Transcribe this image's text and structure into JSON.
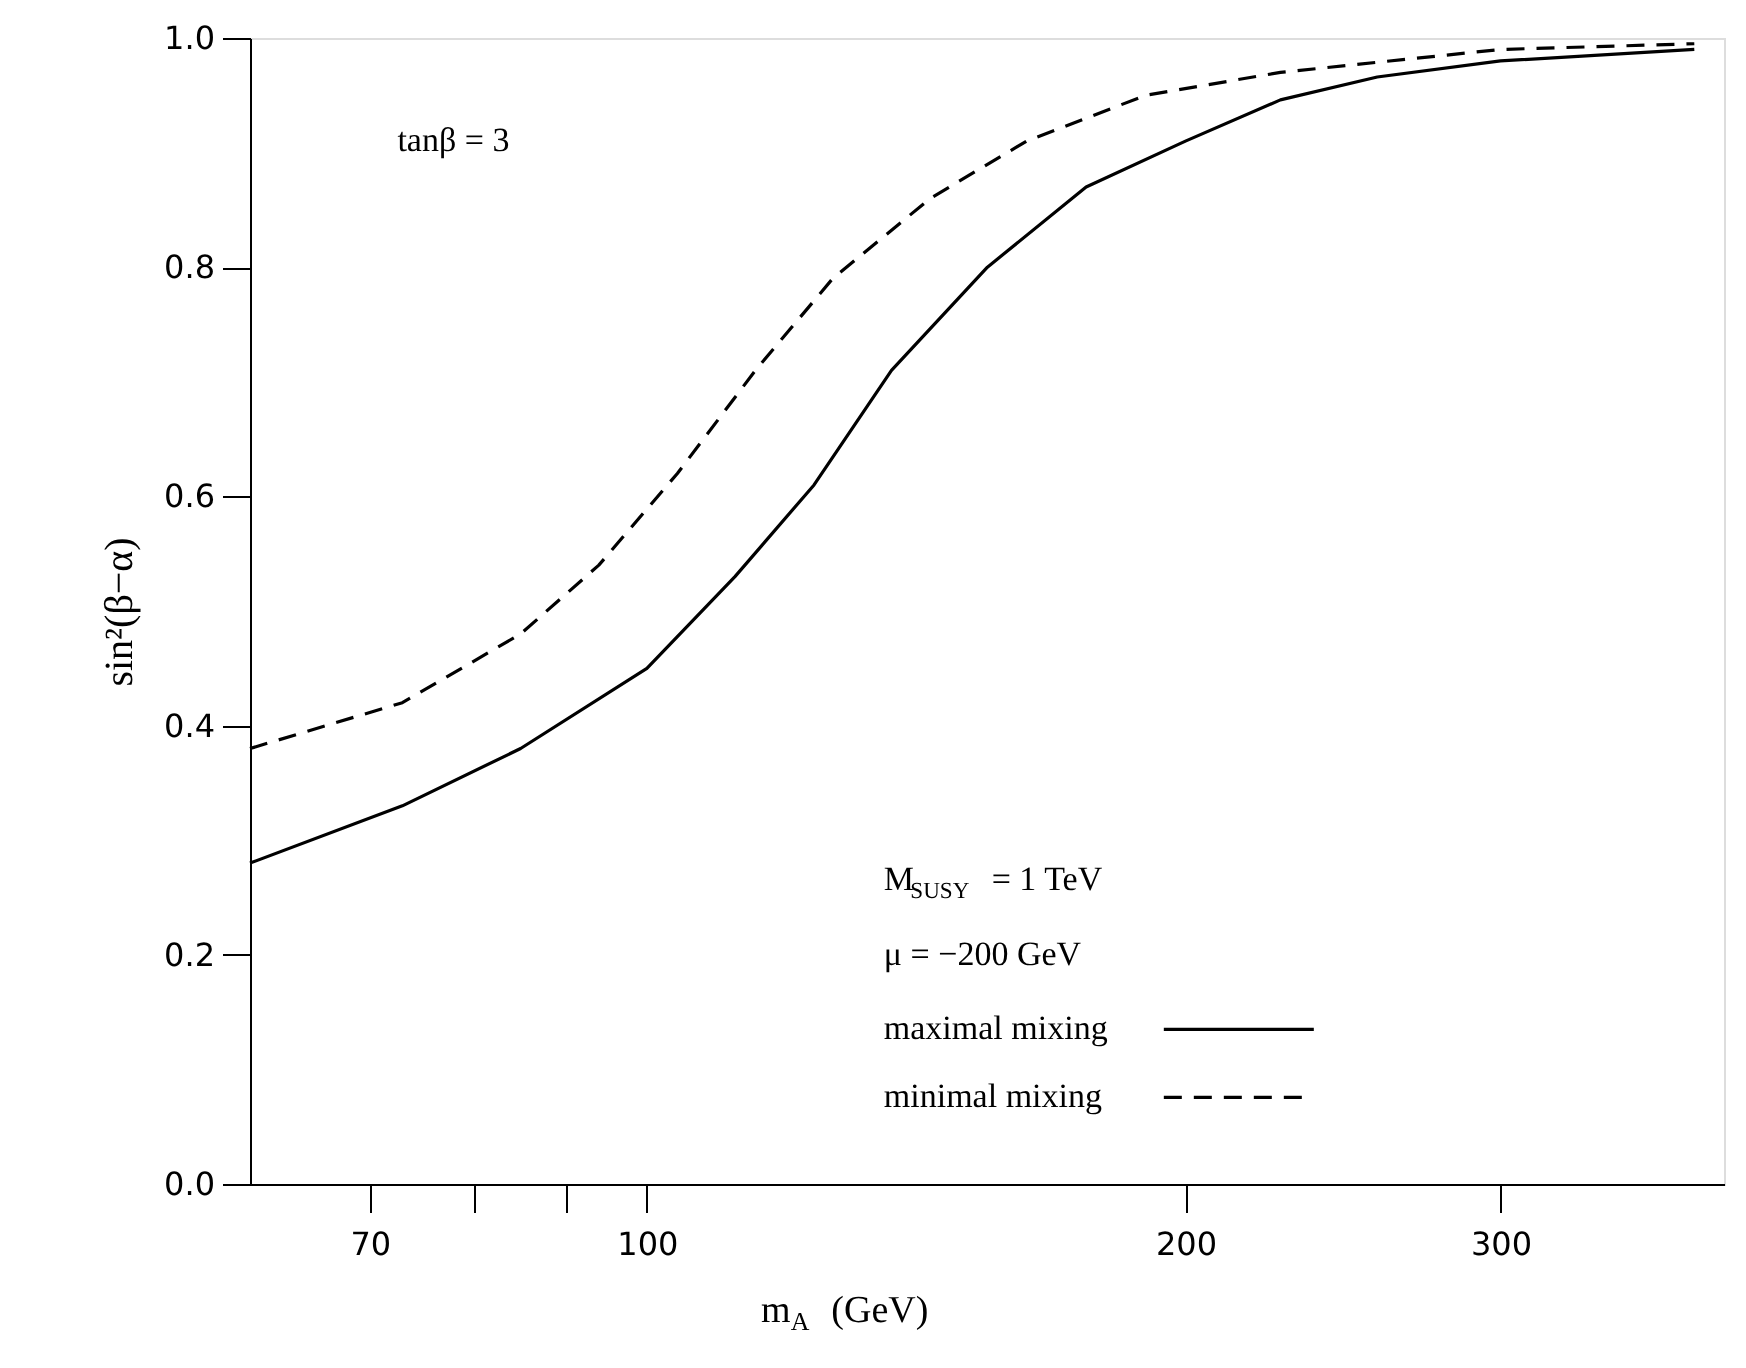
{
  "chart_data": {
    "type": "line",
    "xlabel": "m$_{A}$  (GeV)",
    "ylabel": "sin²(β−α)",
    "log": "x",
    "grid": false,
    "legend": "bottom right",
    "marker": "none",
    "xlim": [
      60,
      400
    ],
    "xticks": [
      70,
      {
        "value": 80,
        "label": null
      },
      {
        "value": 90,
        "label": null
      },
      100,
      200,
      300
    ],
    "ylim": [
      0,
      1
    ],
    "yticks": [
      {
        "value": 0,
        "label": "0.0"
      },
      0.2,
      0.4,
      0.6,
      0.8,
      {
        "value": 1,
        "label": "1.0"
      }
    ],
    "annotations": [
      "tanβ = 3",
      "M$_{SUSY}$ = 1 TeV",
      "μ = −200 GeV"
    ],
    "series": [
      {
        "name": "maximal mixing",
        "color": "#000000",
        "line_style": "solid",
        "x": [
          60,
          73,
          85,
          100,
          112,
          124,
          137,
          155,
          176,
          200,
          226,
          256,
          300,
          385
        ],
        "values": [
          0.28,
          0.33,
          0.38,
          0.45,
          0.53,
          0.61,
          0.71,
          0.8,
          0.87,
          0.91,
          0.946,
          0.966,
          0.98,
          0.99
        ]
      },
      {
        "name": "minimal mixing",
        "color": "#000000",
        "line_style": "dashed",
        "x": [
          60,
          73,
          85,
          94,
          104,
          115,
          127,
          144,
          163,
          190,
          226,
          300,
          385
        ],
        "values": [
          0.38,
          0.42,
          0.48,
          0.54,
          0.62,
          0.71,
          0.79,
          0.86,
          0.91,
          0.95,
          0.97,
          0.99,
          0.995
        ]
      }
    ]
  }
}
